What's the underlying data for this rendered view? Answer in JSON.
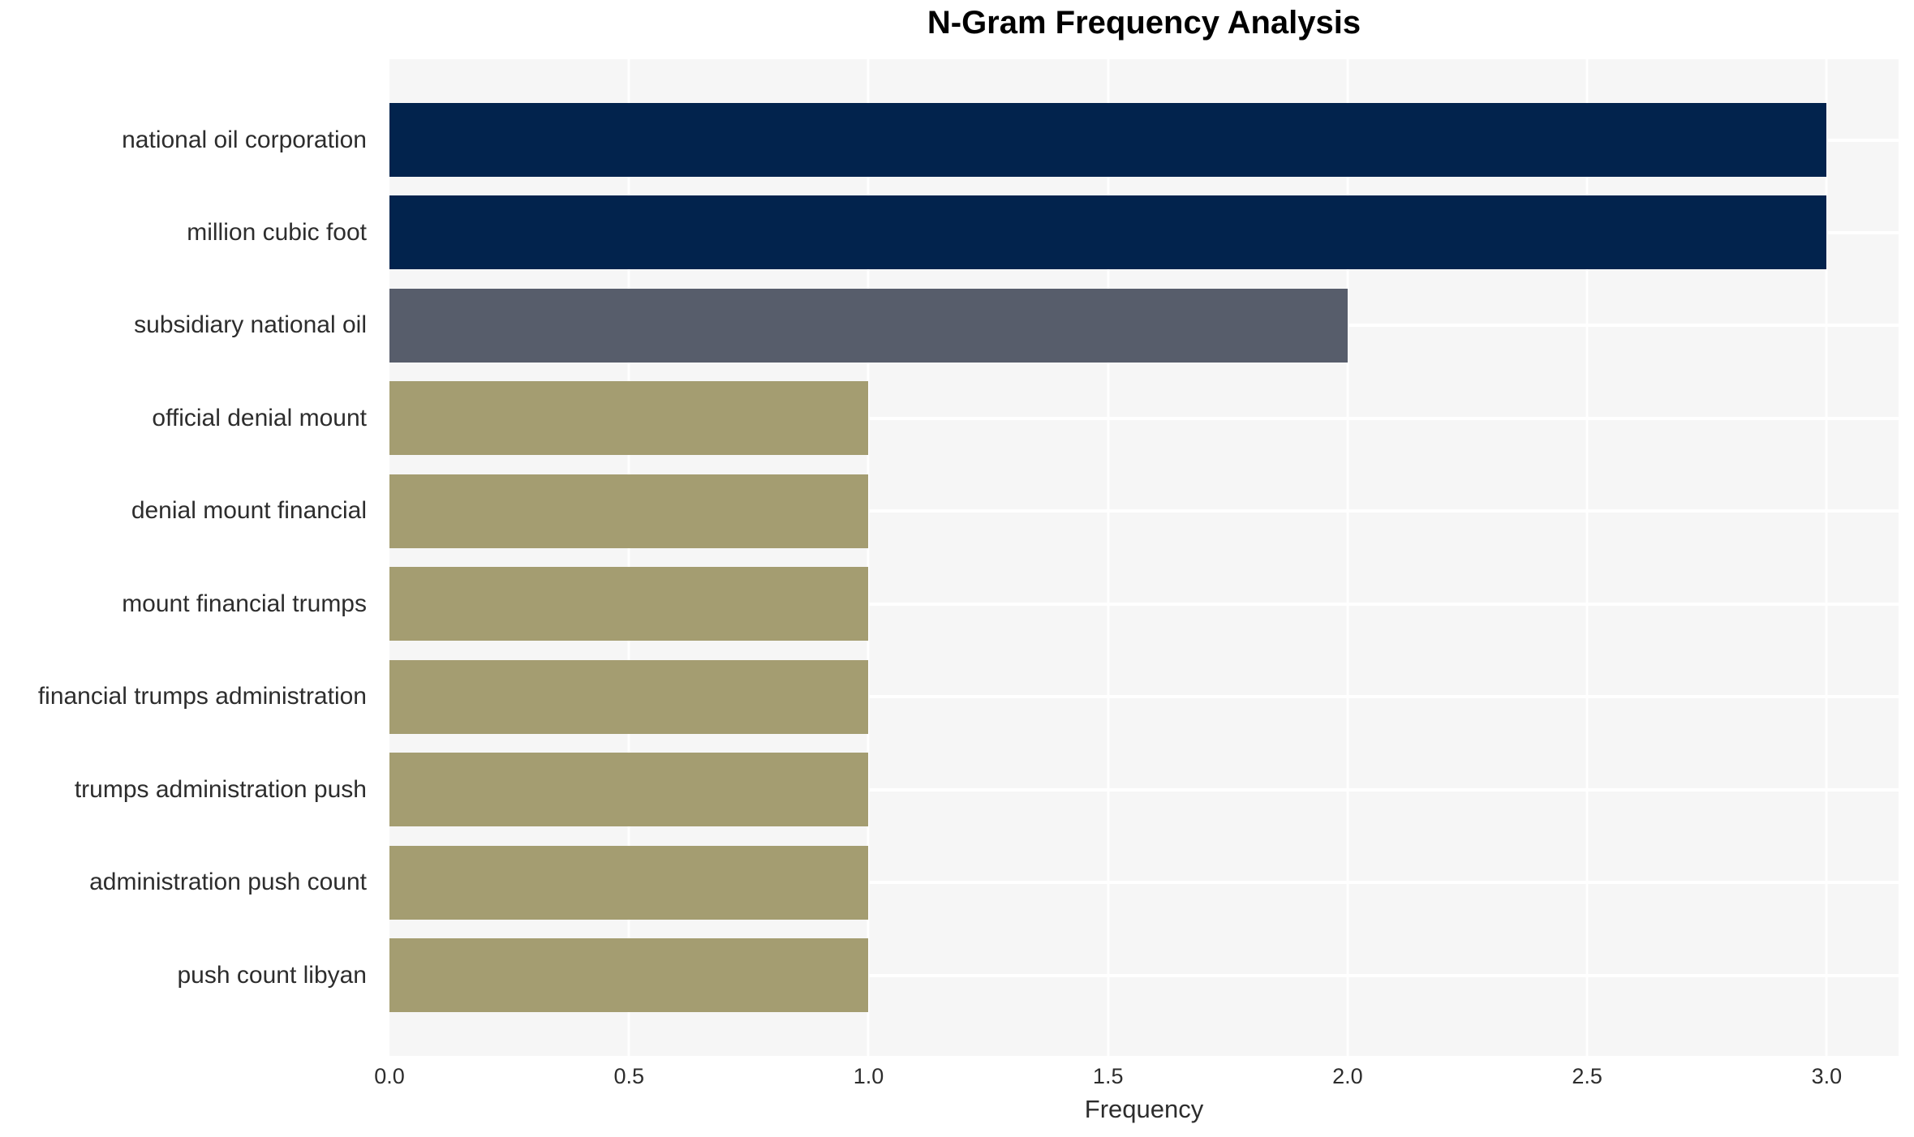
{
  "chart_data": {
    "type": "bar",
    "orientation": "horizontal",
    "title": "N-Gram Frequency Analysis",
    "xlabel": "Frequency",
    "ylabel": "",
    "categories": [
      "national oil corporation",
      "million cubic foot",
      "subsidiary national oil",
      "official denial mount",
      "denial mount financial",
      "mount financial trumps",
      "financial trumps administration",
      "trumps administration push",
      "administration push count",
      "push count libyan"
    ],
    "values": [
      3,
      3,
      2,
      1,
      1,
      1,
      1,
      1,
      1,
      1
    ],
    "bar_colors": [
      "#02234d",
      "#02234d",
      "#575d6b",
      "#a49d71",
      "#a49d71",
      "#a49d71",
      "#a49d71",
      "#a49d71",
      "#a49d71",
      "#a49d71"
    ],
    "color_by_value": {
      "3": "#02234d",
      "2": "#575d6b",
      "1": "#a49d71"
    },
    "xlim": [
      0,
      3.15
    ],
    "xticks": [
      0.0,
      0.5,
      1.0,
      1.5,
      2.0,
      2.5,
      3.0
    ],
    "xtick_labels": [
      "0.0",
      "0.5",
      "1.0",
      "1.5",
      "2.0",
      "2.5",
      "3.0"
    ],
    "grid": true,
    "legend": "none",
    "plot_background": "#f6f6f6",
    "grid_color": "#ffffff",
    "figure_background": "#ffffff",
    "text_color": "#2d2d2d"
  }
}
